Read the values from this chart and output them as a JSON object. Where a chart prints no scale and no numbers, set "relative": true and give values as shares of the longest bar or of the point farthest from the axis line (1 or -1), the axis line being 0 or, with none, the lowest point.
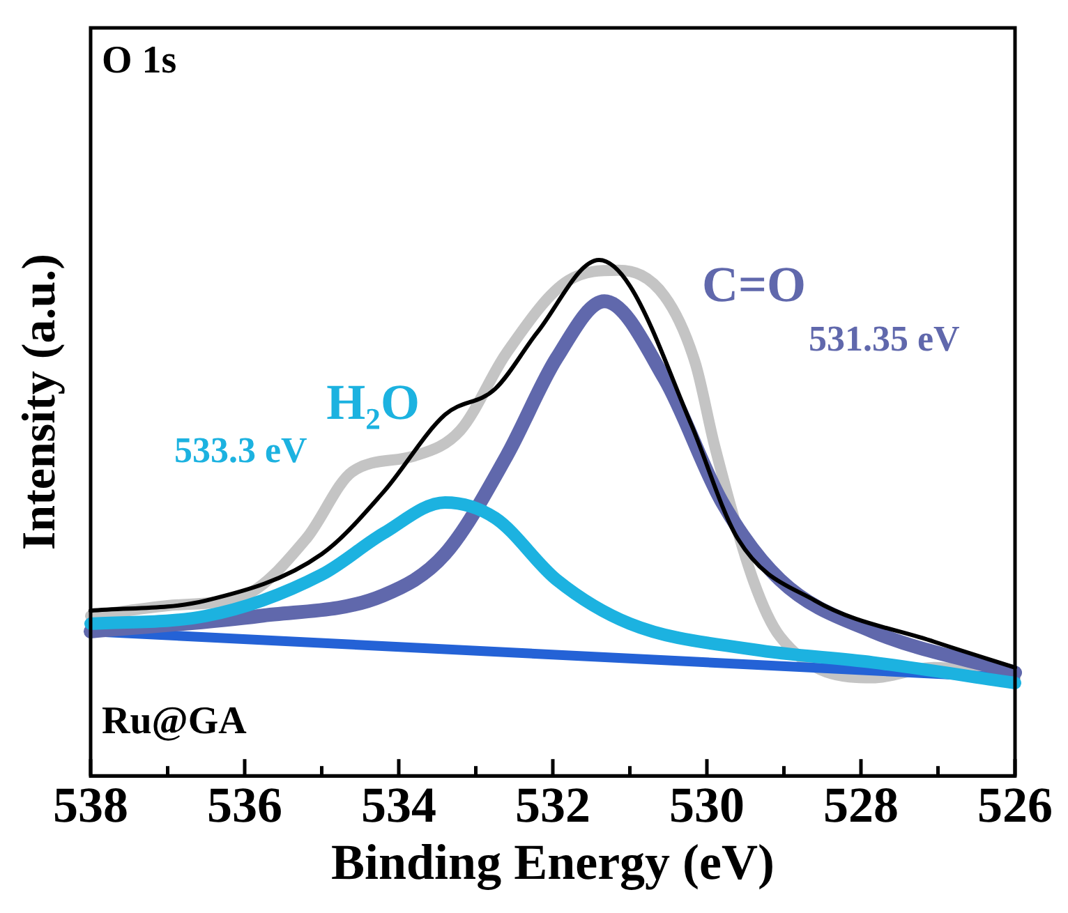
{
  "chart_data": {
    "type": "line",
    "xlabel": "Binding Energy (eV)",
    "ylabel": "Intensity (a.u.)",
    "relative": true,
    "xlim": [
      538,
      526
    ],
    "xticks": [
      538,
      {
        "value": 537,
        "label": null
      },
      536,
      {
        "value": 535,
        "label": null
      },
      534,
      {
        "value": 533,
        "label": null
      },
      532,
      {
        "value": 531,
        "label": null
      },
      530,
      {
        "value": 529,
        "label": null
      },
      528,
      {
        "value": 527,
        "label": null
      },
      526
    ],
    "grid": false,
    "legend": false,
    "marker": "none",
    "line_style": "solid",
    "series": [
      {
        "color": "#c4c4c4",
        "x": [
          538,
          537,
          536,
          535.2,
          534.6,
          533.8,
          533.2,
          532.6,
          531.8,
          531.15,
          530.55,
          530.15,
          529.9,
          529.4,
          529.05,
          527.85,
          527.05,
          526
        ],
        "values": [
          0.31,
          0.33,
          0.35,
          0.46,
          0.59,
          0.62,
          0.67,
          0.82,
          0.96,
          0.98,
          0.93,
          0.8,
          0.64,
          0.38,
          0.27,
          0.19,
          0.21,
          0.19
        ]
      },
      {
        "color": "#2462d6",
        "x": [
          538,
          526
        ],
        "values": [
          0.28,
          0.19
        ]
      },
      {
        "name": "C=O",
        "color": "#6068ac",
        "x": [
          538,
          535.8,
          534.2,
          533.4,
          532.6,
          531.95,
          531.33,
          530.55,
          529.8,
          529.05,
          527.85,
          526
        ],
        "values": [
          0.28,
          0.31,
          0.35,
          0.43,
          0.62,
          0.81,
          0.92,
          0.77,
          0.53,
          0.38,
          0.28,
          0.2
        ]
      },
      {
        "name": "H₂O",
        "color": "#1cb2e0",
        "x": [
          538,
          536.5,
          535,
          534.2,
          533.4,
          532.75,
          531.95,
          531,
          529.4,
          527.85,
          526
        ],
        "values": [
          0.295,
          0.31,
          0.39,
          0.47,
          0.53,
          0.5,
          0.38,
          0.295,
          0.245,
          0.22,
          0.18
        ]
      },
      {
        "color": "#000000",
        "x": [
          538,
          536.5,
          535,
          534.2,
          533.4,
          532.75,
          532.2,
          531.4,
          531,
          530.2,
          529.6,
          528.6,
          527.05,
          526
        ],
        "values": [
          0.32,
          0.34,
          0.43,
          0.55,
          0.7,
          0.75,
          0.86,
          1,
          0.95,
          0.68,
          0.46,
          0.34,
          0.26,
          0.21
        ]
      }
    ],
    "annotations": [
      "O 1s",
      "Ru@GA",
      "531.35 eV",
      "533.3 eV"
    ]
  }
}
